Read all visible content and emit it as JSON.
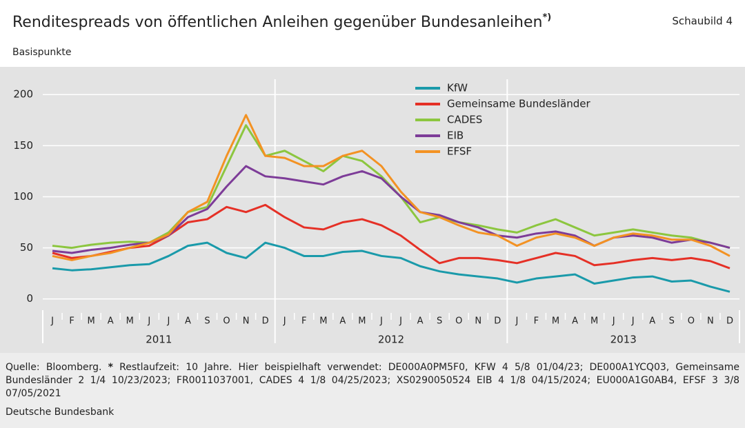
{
  "chart_data": {
    "type": "line",
    "title": "Renditespreads von öffentlichen Anleihen gegenüber Bundesanleihen",
    "title_mark": "*)",
    "figure_label": "Schaubild 4",
    "subtitle": "Basispunkte",
    "categories": [
      "J",
      "F",
      "M",
      "A",
      "M",
      "J",
      "J",
      "A",
      "S",
      "O",
      "N",
      "D",
      "J",
      "F",
      "M",
      "A",
      "M",
      "J",
      "J",
      "A",
      "S",
      "O",
      "N",
      "D",
      "J",
      "F",
      "M",
      "A",
      "M",
      "J",
      "J",
      "A",
      "S",
      "O",
      "N",
      "D"
    ],
    "years": [
      "2011",
      "2012",
      "2013"
    ],
    "ylim": [
      -11,
      215
    ],
    "yticks": [
      0,
      50,
      100,
      150,
      200
    ],
    "grid": true,
    "legend": "upper center",
    "series": [
      {
        "name": "KfW",
        "color": "#1a9aaa",
        "values": [
          30,
          28,
          29,
          31,
          33,
          34,
          42,
          52,
          55,
          45,
          40,
          55,
          50,
          42,
          42,
          46,
          47,
          42,
          40,
          32,
          27,
          24,
          22,
          20,
          16,
          20,
          22,
          24,
          15,
          18,
          21,
          22,
          17,
          18,
          12,
          7
        ]
      },
      {
        "name": "Gemeinsame Bundesländer",
        "color": "#e53026",
        "values": [
          45,
          40,
          42,
          46,
          50,
          52,
          62,
          75,
          78,
          90,
          85,
          92,
          80,
          70,
          68,
          75,
          78,
          72,
          62,
          48,
          35,
          40,
          40,
          38,
          35,
          40,
          45,
          42,
          33,
          35,
          38,
          40,
          38,
          40,
          37,
          30
        ]
      },
      {
        "name": "CADES",
        "color": "#8cc63f",
        "values": [
          52,
          50,
          53,
          55,
          56,
          55,
          65,
          85,
          90,
          130,
          170,
          140,
          145,
          135,
          125,
          140,
          135,
          120,
          100,
          75,
          80,
          75,
          72,
          68,
          65,
          72,
          78,
          70,
          62,
          65,
          68,
          65,
          62,
          60,
          55,
          50
        ]
      },
      {
        "name": "EIB",
        "color": "#7d3c98",
        "values": [
          47,
          45,
          48,
          50,
          53,
          55,
          62,
          80,
          88,
          110,
          130,
          120,
          118,
          115,
          112,
          120,
          125,
          118,
          100,
          85,
          82,
          75,
          70,
          62,
          60,
          64,
          66,
          62,
          52,
          60,
          62,
          60,
          55,
          58,
          55,
          50
        ]
      },
      {
        "name": "EFSF",
        "color": "#f39223",
        "values": [
          42,
          38,
          42,
          45,
          50,
          55,
          63,
          85,
          95,
          140,
          180,
          140,
          138,
          130,
          130,
          140,
          145,
          130,
          105,
          85,
          80,
          72,
          65,
          62,
          52,
          60,
          64,
          60,
          52,
          60,
          64,
          62,
          58,
          58,
          52,
          42
        ]
      }
    ],
    "source": "Quelle: Bloomberg.",
    "footnote_mark": "*",
    "footnote": "Restlaufzeit: 10 Jahre. Hier beispielhaft verwendet: DE000A0PM5F0, KFW 4 5/8 01/04/23; DE000A1YCQ03, Gemeinsame Bundesländer 2 1/4 10/23/2023; FR0011037001, CADES 4 1/8 04/25/2023; XS0290050524 EIB 4 1/8 04/15/2024; EU000A1G0AB4, EFSF 3 3/8 07/05/2021",
    "publisher": "Deutsche Bundesbank"
  }
}
